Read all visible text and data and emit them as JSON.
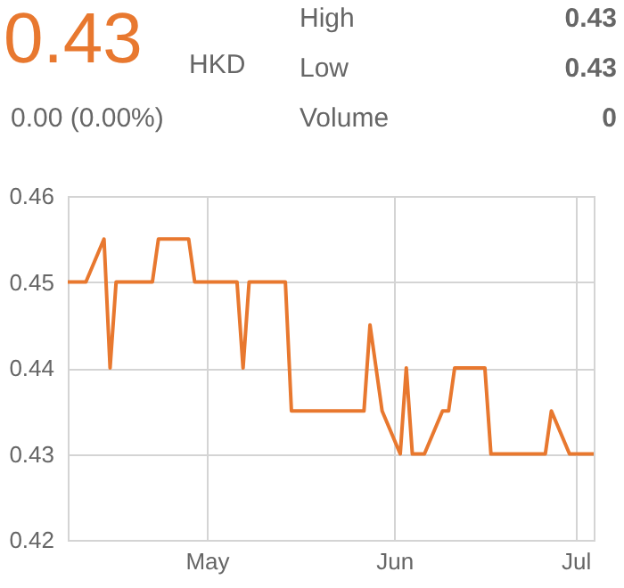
{
  "chart_data": {
    "type": "line",
    "annotations": [
      "0.43",
      "HKD",
      "0.00 (0.00%)",
      "High",
      "0.43",
      "Low",
      "0.43",
      "Volume",
      "0"
    ],
    "x": [
      "--04-08",
      "--04-11",
      "--04-14",
      "--04-15",
      "--04-16",
      "--04-22",
      "--04-23",
      "--04-28",
      "--04-29",
      "--05-06",
      "--05-07",
      "--05-08",
      "--05-14",
      "--05-15",
      "--05-27",
      "--05-28",
      "--05-30",
      "--06-02",
      "--06-03",
      "--06-04",
      "--06-06",
      "--06-09",
      "--06-10",
      "--06-11",
      "--06-16",
      "--06-17",
      "--06-26",
      "--06-27",
      "--06-30",
      "--07-04"
    ],
    "series": [
      {
        "color": "#e8782f",
        "values": [
          0.45,
          0.45,
          0.455,
          0.44,
          0.45,
          0.45,
          0.455,
          0.455,
          0.45,
          0.45,
          0.44,
          0.45,
          0.45,
          0.435,
          0.435,
          0.445,
          0.435,
          0.43,
          0.44,
          0.43,
          0.43,
          0.435,
          0.435,
          0.44,
          0.44,
          0.43,
          0.43,
          0.435,
          0.43,
          0.43
        ]
      }
    ],
    "xlim": [
      "--04-08",
      "--07-04"
    ],
    "xticks": [
      {
        "value": "--05-01",
        "label": "May"
      },
      {
        "value": "--06-01",
        "label": "Jun"
      },
      {
        "value": "--07-01",
        "label": "Jul"
      }
    ],
    "ylim": [
      0.42,
      0.46
    ],
    "yticks": [
      0.42,
      0.43,
      0.44,
      0.45,
      0.46
    ],
    "grid": true,
    "marker": "none",
    "line_style": "solid"
  }
}
